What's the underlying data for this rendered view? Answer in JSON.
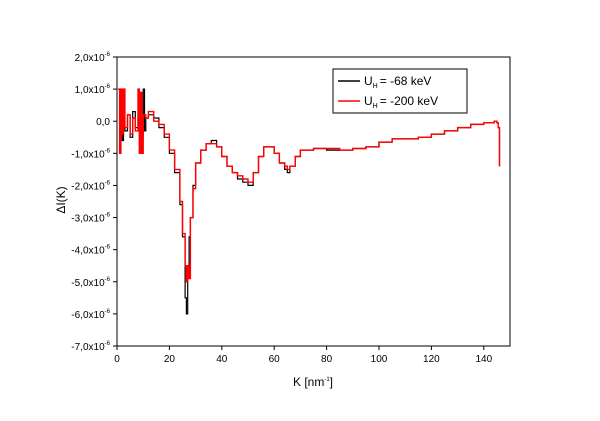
{
  "chart_data": {
    "type": "line",
    "xlabel": "K [nm",
    "xlabel_sup": "-1",
    "xlabel_end": "]",
    "ylabel": "ΔI(K)",
    "xlim": [
      0,
      150
    ],
    "ylim": [
      -7e-06,
      2e-06
    ],
    "x_ticks": [
      {
        "value": 0,
        "label": "0"
      },
      {
        "value": 20,
        "label": "20"
      },
      {
        "value": 40,
        "label": "40"
      },
      {
        "value": 60,
        "label": "60"
      },
      {
        "value": 80,
        "label": "80"
      },
      {
        "value": 100,
        "label": "100"
      },
      {
        "value": 120,
        "label": "120"
      },
      {
        "value": 140,
        "label": "140"
      }
    ],
    "y_ticks": [
      {
        "value": 2e-06,
        "label": "2,0x10",
        "exp": "-6"
      },
      {
        "value": 1e-06,
        "label": "1,0x10",
        "exp": "-6"
      },
      {
        "value": 0.0,
        "label": "0,0",
        "exp": ""
      },
      {
        "value": -1e-06,
        "label": "-1,0x10",
        "exp": "-6"
      },
      {
        "value": -2e-06,
        "label": "-2,0x10",
        "exp": "-6"
      },
      {
        "value": -3e-06,
        "label": "-3,0x10",
        "exp": "-6"
      },
      {
        "value": -4e-06,
        "label": "-4,0x10",
        "exp": "-6"
      },
      {
        "value": -5e-06,
        "label": "-5,0x10",
        "exp": "-6"
      },
      {
        "value": -6e-06,
        "label": "-6,0x10",
        "exp": "-6"
      },
      {
        "value": -7e-06,
        "label": "-7,0x10",
        "exp": "-6"
      }
    ],
    "grid": false,
    "legend_position": "top-right",
    "series": [
      {
        "name": "U",
        "name_sub": "H",
        "name_rest": "= -68 keV",
        "color": "#000000",
        "x": [
          0.5,
          1,
          1.5,
          2,
          2.5,
          3,
          4,
          5,
          6,
          7,
          8,
          9,
          10,
          10.5,
          11,
          12,
          14,
          16,
          18,
          20,
          22,
          24,
          25,
          26,
          26.5,
          27,
          27.5,
          28,
          29,
          30,
          32,
          34,
          36,
          38,
          40,
          42,
          44,
          46,
          48,
          50,
          52,
          54,
          56,
          58,
          60,
          62,
          64,
          65,
          66,
          68,
          70,
          75,
          80,
          85,
          90,
          95,
          100,
          105,
          110,
          115,
          120,
          125,
          130,
          135,
          140,
          144,
          145,
          145.5,
          146
        ],
        "y": [
          1e-06,
          -5e-07,
          1e-06,
          -6e-07,
          1e-06,
          -3e-07,
          2e-07,
          -5e-07,
          3e-07,
          -2e-07,
          2e-07,
          -5e-07,
          1e-06,
          -3e-07,
          1e-07,
          2e-07,
          1e-07,
          -2e-07,
          -5e-07,
          -1e-06,
          -1.6e-06,
          -2.6e-06,
          -3.6e-06,
          -5.5e-06,
          -6e-06,
          -4.6e-06,
          -3.6e-06,
          -3e-06,
          -2e-06,
          -1.3e-06,
          -9e-07,
          -7e-07,
          -6e-07,
          -8e-07,
          -1.1e-06,
          -1.4e-06,
          -1.6e-06,
          -1.8e-06,
          -1.9e-06,
          -2e-06,
          -1.6e-06,
          -1.1e-06,
          -8e-07,
          -8e-07,
          -1e-06,
          -1.3e-06,
          -1.5e-06,
          -1.6e-06,
          -1.4e-06,
          -1.1e-06,
          -9e-07,
          -8.5e-07,
          -9e-07,
          -9e-07,
          -8.5e-07,
          -8e-07,
          -6.5e-07,
          -5.5e-07,
          -5.5e-07,
          -5e-07,
          -4e-07,
          -3e-07,
          -2e-07,
          -1e-07,
          -5e-08,
          0.0,
          -5e-08,
          -2e-07,
          -1.4e-06
        ]
      },
      {
        "name": "U",
        "name_sub": "H",
        "name_rest": "= -200 keV",
        "color": "#ff0000",
        "x": [
          0.5,
          1,
          1.5,
          2,
          2.5,
          3,
          4,
          5,
          6,
          7,
          8,
          8.5,
          9,
          9.5,
          10,
          11,
          12,
          14,
          16,
          18,
          20,
          22,
          24,
          25,
          26,
          26.5,
          27,
          27.5,
          28,
          29,
          30,
          32,
          34,
          36,
          38,
          40,
          42,
          44,
          46,
          48,
          50,
          52,
          54,
          56,
          58,
          60,
          62,
          64,
          65,
          66,
          68,
          70,
          75,
          80,
          85,
          90,
          95,
          100,
          105,
          110,
          115,
          120,
          125,
          130,
          135,
          140,
          144,
          145,
          145.5,
          146
        ],
        "y": [
          1e-06,
          -1e-06,
          1e-06,
          -4e-07,
          1e-06,
          -2e-07,
          2e-07,
          -4e-07,
          1e-07,
          -3e-07,
          1e-06,
          -1e-06,
          9e-07,
          -1e-06,
          2e-07,
          1e-07,
          3e-07,
          0.0,
          -1e-07,
          -4e-07,
          -9e-07,
          -1.5e-06,
          -2.5e-06,
          -3.5e-06,
          -4.5e-06,
          -5e-06,
          -4.5e-06,
          -4.9e-06,
          -3e-06,
          -2.1e-06,
          -1.3e-06,
          -9e-07,
          -7e-07,
          -7e-07,
          -8e-07,
          -1.1e-06,
          -1.4e-06,
          -1.6e-06,
          -1.7e-06,
          -1.8e-06,
          -1.9e-06,
          -1.6e-06,
          -1.1e-06,
          -8e-07,
          -8e-07,
          -1e-06,
          -1.3e-06,
          -1.4e-06,
          -1.5e-06,
          -1.4e-06,
          -1.1e-06,
          -9e-07,
          -8.5e-07,
          -8.5e-07,
          -9e-07,
          -8.5e-07,
          -8e-07,
          -6.5e-07,
          -5.5e-07,
          -5.5e-07,
          -5e-07,
          -4e-07,
          -3e-07,
          -2e-07,
          -1e-07,
          -5e-08,
          0.0,
          -5e-08,
          -2e-07,
          -1.4e-06
        ]
      }
    ]
  }
}
